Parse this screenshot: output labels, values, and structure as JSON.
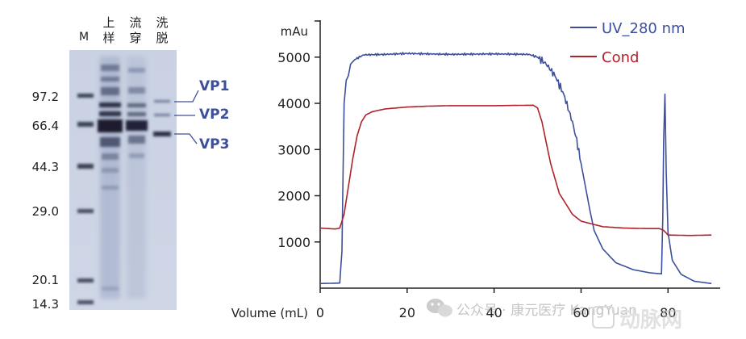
{
  "gel": {
    "lane_labels": [
      "M",
      "上样",
      "流穿",
      "洗脱"
    ],
    "marker_kda": [
      "97.2",
      "66.4",
      "44.3",
      "29.0",
      "20.1",
      "14.3"
    ],
    "band_labels": [
      "VP1",
      "VP2",
      "VP3"
    ]
  },
  "chart_data": {
    "type": "line",
    "title": "",
    "xlabel": "Volume (mL)",
    "ylabel": "mAu",
    "xlim": [
      0,
      92
    ],
    "ylim": [
      0,
      5800
    ],
    "xticks": [
      0,
      20,
      40,
      60,
      80
    ],
    "yticks": [
      1000,
      2000,
      3000,
      4000,
      5000
    ],
    "legend_position": "top-right",
    "series": [
      {
        "name": "UV_280 nm",
        "color": "#3d4f9a",
        "x": [
          0,
          4.5,
          5.0,
          5.5,
          6.0,
          6.5,
          7.0,
          8.0,
          9.0,
          10.0,
          15.0,
          20.0,
          30.0,
          40.0,
          48.0,
          50.0,
          52.0,
          54.0,
          55.0,
          56.0,
          57.0,
          58.0,
          59.0,
          60.0,
          61.0,
          62.0,
          63.0,
          65.0,
          68.0,
          72.0,
          76.0,
          78.5,
          78.8,
          79.0,
          79.3,
          79.6,
          80.0,
          81.0,
          83.0,
          86.0,
          90.0
        ],
        "values": [
          100,
          110,
          800,
          4000,
          4500,
          4600,
          4850,
          4950,
          5000,
          5050,
          5060,
          5080,
          5060,
          5070,
          5060,
          5000,
          4850,
          4600,
          4400,
          4200,
          3900,
          3600,
          3200,
          2700,
          2200,
          1700,
          1250,
          850,
          550,
          400,
          330,
          310,
          1500,
          3200,
          4200,
          2500,
          1200,
          600,
          300,
          150,
          100
        ]
      },
      {
        "name": "Cond",
        "color": "#b0222a",
        "x": [
          0,
          3.5,
          4.5,
          5.5,
          6.5,
          7.5,
          8.5,
          9.5,
          10.5,
          12.0,
          15.0,
          20.0,
          25.0,
          30.0,
          40.0,
          49.0,
          50.0,
          51.0,
          52.0,
          53.0,
          55.0,
          58.0,
          60.0,
          65.0,
          70.0,
          75.0,
          78.0,
          79.0,
          80.0,
          85.0,
          90.0
        ],
        "values": [
          1300,
          1280,
          1300,
          1600,
          2200,
          2800,
          3300,
          3600,
          3750,
          3820,
          3880,
          3920,
          3940,
          3950,
          3950,
          3960,
          3900,
          3600,
          3150,
          2700,
          2050,
          1600,
          1450,
          1330,
          1300,
          1290,
          1290,
          1250,
          1150,
          1140,
          1150
        ]
      }
    ]
  },
  "watermark": {
    "text": "公众号 · 康元医疗 KangYuan",
    "logo_text": "动脉网"
  }
}
